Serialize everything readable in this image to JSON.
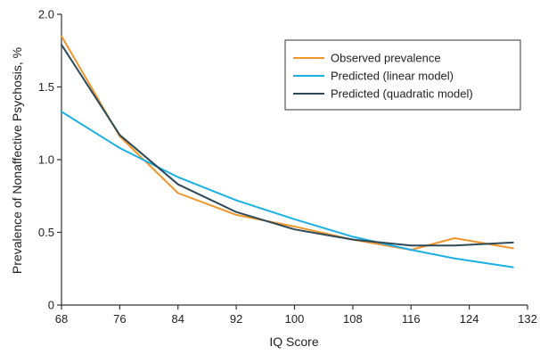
{
  "chart_data": {
    "type": "line",
    "xlabel": "IQ Score",
    "ylabel": "Prevalence of Nonaffective Psychosis, %",
    "xlim": [
      68,
      132
    ],
    "ylim": [
      0,
      2.0
    ],
    "x_ticks": [
      68,
      76,
      84,
      92,
      100,
      108,
      116,
      124,
      132
    ],
    "x_tick_labels": [
      "68",
      "76",
      "84",
      "92",
      "100",
      "108",
      "116",
      "124",
      "132"
    ],
    "y_ticks": [
      0,
      0.5,
      1.0,
      1.5,
      2.0
    ],
    "y_tick_labels": [
      "0",
      "0.5",
      "1.0",
      "1.5",
      "2.0"
    ],
    "grid": false,
    "legend_position": "top-right",
    "series": [
      {
        "name": "Observed prevalence",
        "color": "#F0962B",
        "x": [
          68,
          76,
          84,
          92,
          100,
          108,
          116,
          122,
          130
        ],
        "y": [
          1.85,
          1.16,
          0.77,
          0.62,
          0.54,
          0.45,
          0.38,
          0.46,
          0.39
        ]
      },
      {
        "name": "Predicted (linear model)",
        "color": "#1AB0E6",
        "x": [
          68,
          76,
          84,
          92,
          100,
          108,
          116,
          122,
          130
        ],
        "y": [
          1.33,
          1.08,
          0.88,
          0.72,
          0.59,
          0.47,
          0.38,
          0.32,
          0.26
        ]
      },
      {
        "name": "Predicted (quadratic model)",
        "color": "#2E4A59",
        "x": [
          68,
          76,
          84,
          92,
          100,
          108,
          116,
          122,
          130
        ],
        "y": [
          1.79,
          1.17,
          0.83,
          0.64,
          0.52,
          0.45,
          0.41,
          0.41,
          0.43
        ]
      }
    ]
  }
}
